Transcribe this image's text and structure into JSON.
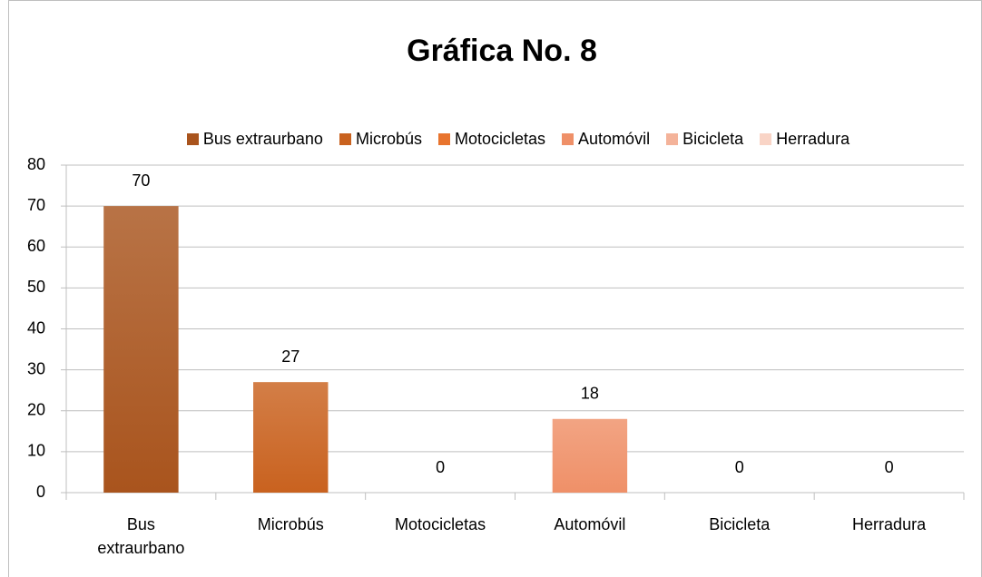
{
  "chart_data": {
    "type": "bar",
    "title": "Gráfica No. 8",
    "categories": [
      "Bus extraurbano",
      "Microbús",
      "Motocicletas",
      "Automóvil",
      "Bicicleta",
      "Herradura"
    ],
    "values": [
      70,
      27,
      0,
      18,
      0,
      0
    ],
    "colors": [
      "#a9541d",
      "#c9621f",
      "#e8742e",
      "#ef9068",
      "#f4b39a",
      "#f9d4c6"
    ],
    "ylim": [
      0,
      80
    ],
    "yticks": [
      0,
      10,
      20,
      30,
      40,
      50,
      60,
      70,
      80
    ],
    "grid": true,
    "legend": "top"
  }
}
